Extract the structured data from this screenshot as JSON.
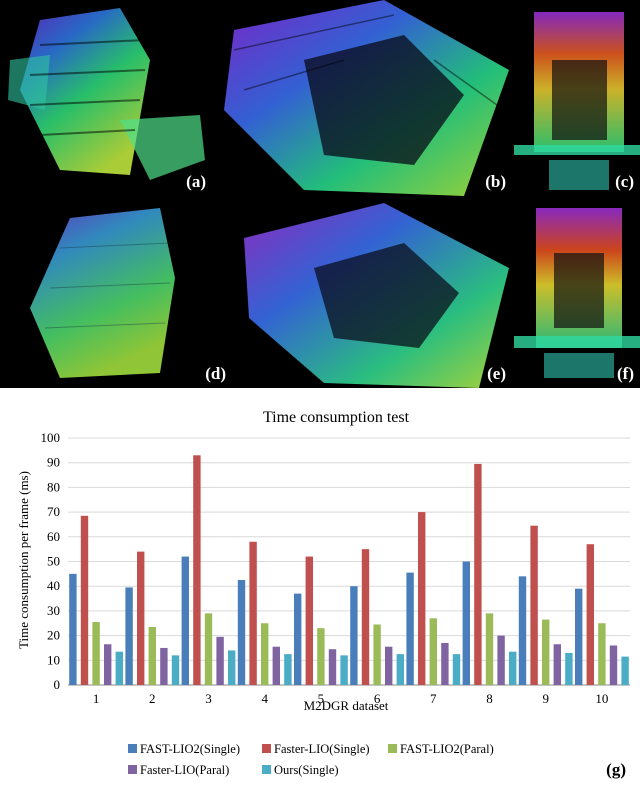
{
  "panels": [
    {
      "label": "(a)"
    },
    {
      "label": "(b)"
    },
    {
      "label": "(c)"
    },
    {
      "label": "(d)"
    },
    {
      "label": "(e)"
    },
    {
      "label": "(f)"
    }
  ],
  "chart_label": "(g)",
  "chart_data": {
    "type": "bar",
    "title": "Time consumption test",
    "xlabel": "M2DGR dataset",
    "ylabel": "Time consumption per frame (ms)",
    "ylim": [
      0,
      100
    ],
    "yticks": [
      0,
      10,
      20,
      30,
      40,
      50,
      60,
      70,
      80,
      90,
      100
    ],
    "grid": "horizontal",
    "legend": "bottom",
    "categories": [
      "1",
      "2",
      "3",
      "4",
      "5",
      "6",
      "7",
      "8",
      "9",
      "10"
    ],
    "series": [
      {
        "name": "FAST-LIO2(Single)",
        "color": "#4a7ebb",
        "values": [
          45,
          39.5,
          52,
          42.5,
          37,
          40,
          45.5,
          50,
          44,
          39
        ]
      },
      {
        "name": "Faster-LIO(Single)",
        "color": "#c0504d",
        "values": [
          68.5,
          54,
          93,
          58,
          52,
          55,
          70,
          89.5,
          64.5,
          57
        ]
      },
      {
        "name": "FAST-LIO2(Paral)",
        "color": "#9bbb59",
        "values": [
          25.5,
          23.5,
          29,
          25,
          23,
          24.5,
          27,
          29,
          26.5,
          25
        ]
      },
      {
        "name": "Faster-LIO(Paral)",
        "color": "#8064a2",
        "values": [
          16.5,
          15,
          19.5,
          15.5,
          14.5,
          15.5,
          17,
          20,
          16.5,
          16
        ]
      },
      {
        "name": "Ours(Single)",
        "color": "#4bacc6",
        "values": [
          13.5,
          12,
          14,
          12.5,
          12,
          12.5,
          12.5,
          13.5,
          13,
          11.5
        ]
      }
    ]
  }
}
